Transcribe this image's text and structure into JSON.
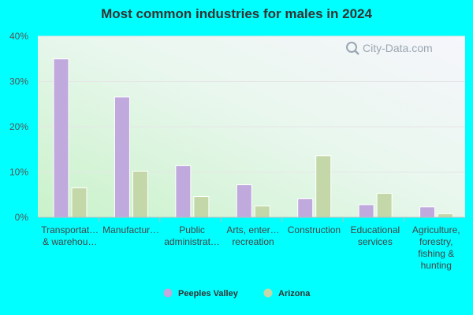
{
  "colors": {
    "background": "#00ffff",
    "series_1": "#c0a9dc",
    "series_2": "#c4d7a8",
    "axis": "#bbbbbb",
    "grid": "#e6e6e6"
  },
  "watermark": {
    "text": "City-Data.com",
    "icon": "magnifier-icon"
  },
  "chart_data": {
    "type": "bar",
    "title": "Most common industries for males in 2024",
    "xlabel": "",
    "ylabel": "",
    "ylim": [
      0,
      40
    ],
    "yticks": [
      "0%",
      "10%",
      "20%",
      "30%",
      "40%"
    ],
    "grid": true,
    "legend_position": "bottom-center",
    "categories": [
      [
        "Transportat…",
        "& warehou…"
      ],
      [
        "Manufactur…"
      ],
      [
        "Public",
        "administrat…"
      ],
      [
        "Arts, enter…",
        "recreation"
      ],
      [
        "Construction"
      ],
      [
        "Educational",
        "services"
      ],
      [
        "Agriculture,",
        "forestry,",
        "fishing &",
        "hunting"
      ]
    ],
    "series": [
      {
        "name": "Peeples Valley",
        "values": [
          35.0,
          26.6,
          11.4,
          7.2,
          4.1,
          2.8,
          2.3
        ]
      },
      {
        "name": "Arizona",
        "values": [
          6.5,
          10.2,
          4.6,
          2.5,
          13.6,
          5.3,
          0.8
        ]
      }
    ]
  }
}
